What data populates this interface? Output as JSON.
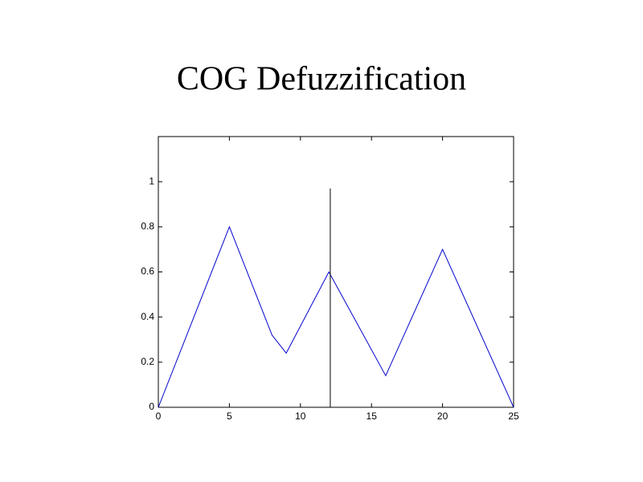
{
  "chart_data": {
    "type": "line",
    "title": "COG Defuzzification",
    "series": [
      {
        "color": "#0000cc",
        "x": [
          0,
          5,
          8,
          9,
          12,
          16,
          20,
          25
        ],
        "values": [
          0,
          0.8,
          0.32,
          0.24,
          0.6,
          0.14,
          0.7,
          0
        ]
      },
      {
        "color": "#000000",
        "x": [
          12.1,
          12.1
        ],
        "values": [
          0,
          0.97
        ]
      }
    ],
    "xlim": [
      0,
      25
    ],
    "xticks": [
      0,
      5,
      10,
      15,
      20,
      25
    ],
    "ylim": [
      0,
      1.2
    ],
    "yticks": [
      0,
      0.2,
      0.4,
      0.6,
      0.8,
      1
    ]
  }
}
